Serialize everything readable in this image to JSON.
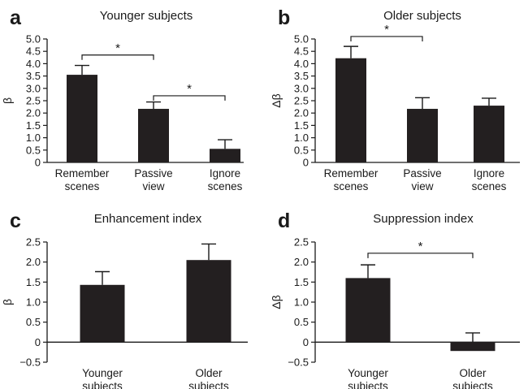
{
  "chart_data": [
    {
      "type": "bar",
      "panel": "a",
      "title": "Younger subjects",
      "ylabel": "β",
      "ylim": [
        0,
        5
      ],
      "yticks": [
        "0",
        "0.5",
        "1.0",
        "1.5",
        "2.0",
        "2.5",
        "3.0",
        "3.5",
        "4.0",
        "4.5",
        "5.0"
      ],
      "categories": [
        [
          "Remember",
          "scenes"
        ],
        [
          "Passive",
          "view"
        ],
        [
          "Ignore",
          "scenes"
        ]
      ],
      "values": [
        3.55,
        2.17,
        0.55
      ],
      "errors": [
        0.38,
        0.28,
        0.37
      ],
      "significance": [
        {
          "from": 0,
          "to": 1,
          "level": 4.35,
          "label": "*"
        },
        {
          "from": 1,
          "to": 2,
          "level": 2.7,
          "label": "*"
        }
      ]
    },
    {
      "type": "bar",
      "panel": "b",
      "title": "Older subjects",
      "ylabel": "Δβ",
      "ylim": [
        0,
        5
      ],
      "yticks": [
        "0",
        "0.5",
        "1.0",
        "1.5",
        "2.0",
        "2.5",
        "3.0",
        "3.5",
        "4.0",
        "4.5",
        "5.0"
      ],
      "categories": [
        [
          "Remember",
          "scenes"
        ],
        [
          "Passive",
          "view"
        ],
        [
          "Ignore",
          "scenes"
        ]
      ],
      "values": [
        4.22,
        2.17,
        2.3
      ],
      "errors": [
        0.48,
        0.45,
        0.3
      ],
      "significance": [
        {
          "from": 0,
          "to": 1,
          "level": 5.1,
          "label": "*"
        }
      ]
    },
    {
      "type": "bar",
      "panel": "c",
      "title": "Enhancement index",
      "ylabel": "β",
      "ylim": [
        -0.5,
        2.5
      ],
      "yticks": [
        "−0.5",
        "0",
        "0.5",
        "1.0",
        "1.5",
        "2.0",
        "2.5"
      ],
      "categories": [
        [
          "Younger",
          "subjects"
        ],
        [
          "Older",
          "subjects"
        ]
      ],
      "values": [
        1.43,
        2.05
      ],
      "errors": [
        0.33,
        0.4
      ],
      "significance": []
    },
    {
      "type": "bar",
      "panel": "d",
      "title": "Suppression index",
      "ylabel": "Δβ",
      "ylim": [
        -0.5,
        2.5
      ],
      "yticks": [
        "−0.5",
        "0",
        "0.5",
        "1.0",
        "1.5",
        "2.0",
        "2.5"
      ],
      "categories": [
        [
          "Younger",
          "subjects"
        ],
        [
          "Older",
          "subjects"
        ]
      ],
      "values": [
        1.6,
        -0.22
      ],
      "errors": [
        0.33,
        0.45
      ],
      "significance": [
        {
          "from": 0,
          "to": 1,
          "level": 2.22,
          "label": "*"
        }
      ]
    }
  ]
}
